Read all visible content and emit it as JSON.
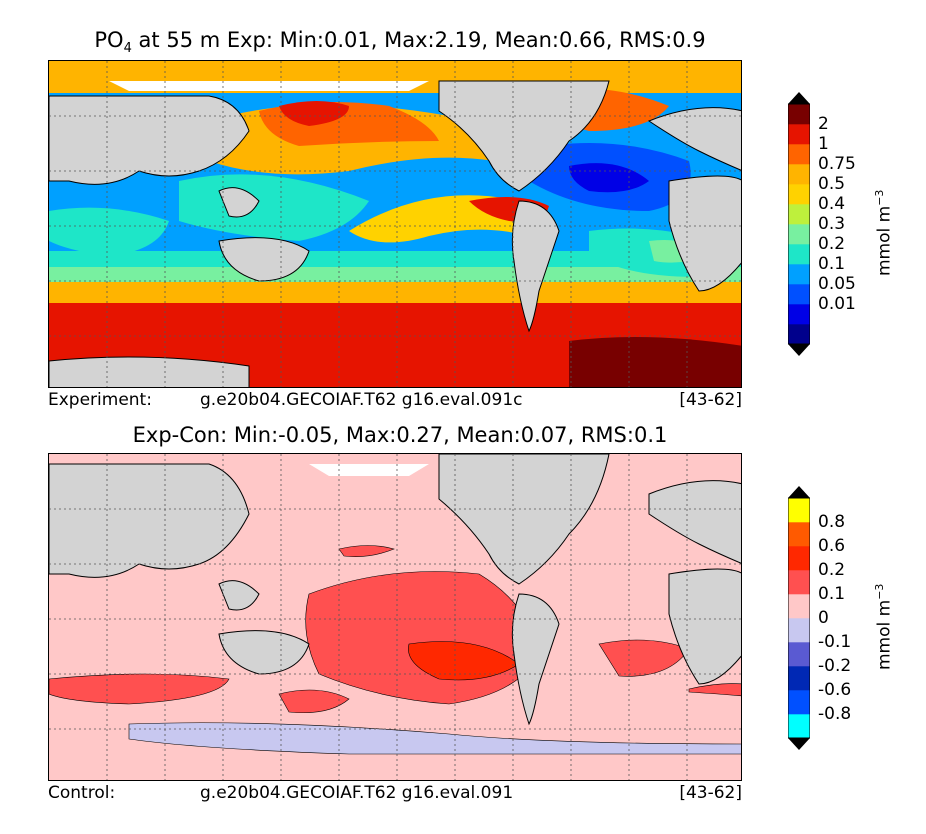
{
  "top_panel": {
    "title_prefix": "PO",
    "title_subscript": "4",
    "title_rest": " at 55 m Exp: Min:0.01, Max:2.19, Mean:0.66, RMS:0.9",
    "caption_label": "Experiment:",
    "caption_case": "g.e20b04.GECOIAF.T62 g16.eval.091c",
    "caption_years": "[43-62]",
    "colorbar": {
      "ticks": [
        "2",
        "1",
        "0.75",
        "0.5",
        "0.4",
        "0.3",
        "0.2",
        "0.1",
        "0.05",
        "0.01"
      ],
      "units": "mmol m",
      "units_exp": "−3",
      "colors": [
        "#00008c",
        "#0000e6",
        "#0050ff",
        "#00a0ff",
        "#1ee6c8",
        "#78f0a0",
        "#bef03c",
        "#ffd200",
        "#ffb400",
        "#ff6400",
        "#e61400",
        "#780000"
      ],
      "arrow_top_color": "#000000",
      "arrow_bottom_color": "#000000"
    }
  },
  "bottom_panel": {
    "title": "Exp-Con: Min:-0.05, Max:0.27, Mean:0.07, RMS:0.1",
    "caption_label": "Control:",
    "caption_case": "g.e20b04.GECOIAF.T62 g16.eval.091",
    "caption_years": "[43-62]",
    "colorbar": {
      "ticks": [
        "0.8",
        "0.6",
        "0.2",
        "0.1",
        "0",
        "-0.1",
        "-0.2",
        "-0.6",
        "-0.8"
      ],
      "units": "mmol m",
      "units_exp": "−3",
      "colors": [
        "#00ffff",
        "#0050ff",
        "#0028b4",
        "#5a5ad2",
        "#c8c8f0",
        "#ffc8c8",
        "#ff5050",
        "#ff2800",
        "#ff5a00",
        "#ffff00"
      ]
    }
  },
  "colors": {
    "land": "#d3d3d3",
    "ice": "#ffffff",
    "coast": "#000000",
    "grid": "#555555"
  }
}
